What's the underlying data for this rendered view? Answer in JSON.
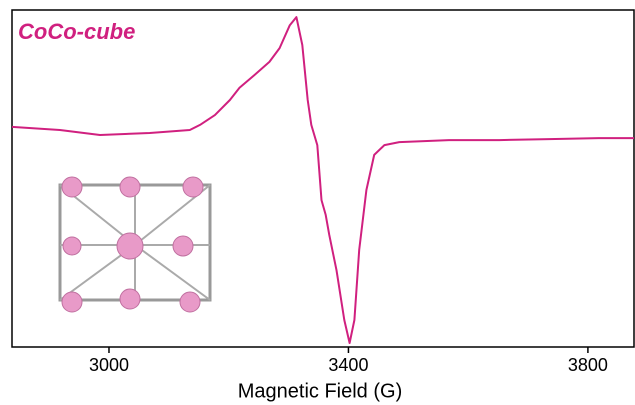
{
  "chart_data": {
    "type": "line",
    "annotation": "CoCo-cube",
    "x_label": "Magnetic Field (G)",
    "x": [
      2838,
      2918,
      2985,
      3068,
      3135,
      3152,
      3177,
      3202,
      3218,
      3243,
      3268,
      3285,
      3302,
      3313,
      3323,
      3332,
      3338,
      3348,
      3355,
      3362,
      3368,
      3380,
      3393,
      3402,
      3410,
      3418,
      3430,
      3443,
      3460,
      3485,
      3568,
      3652,
      3735,
      3818,
      3877
    ],
    "series": [
      {
        "color": "#d0207f",
        "values": [
          65.3,
          64.4,
          62.9,
          63.5,
          64.4,
          65.9,
          68.8,
          73.3,
          76.9,
          80.7,
          84.6,
          88.7,
          95.5,
          97.9,
          89.6,
          73.3,
          65.9,
          59.9,
          43.6,
          39.2,
          33.2,
          22.8,
          8.0,
          1.2,
          8.0,
          28.8,
          46.6,
          57.0,
          59.9,
          60.8,
          61.4,
          61.4,
          61.7,
          62.0,
          62.0
        ]
      }
    ],
    "xlim": [
      2838,
      3877
    ],
    "xticks": [
      3000,
      3400,
      3800
    ],
    "ylim": [
      0,
      100
    ]
  }
}
